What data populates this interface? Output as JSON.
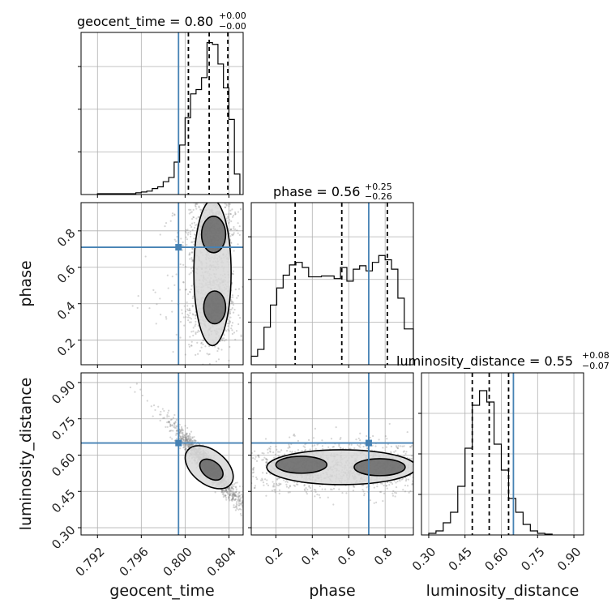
{
  "colors": {
    "truth": "#4682b4",
    "hist": "#000000",
    "quantile": "#000000",
    "grid": "#b0b0b0",
    "points": "#888888",
    "density": "#000000"
  },
  "chart_data": {
    "type": "corner",
    "grid": true,
    "parameters": [
      {
        "name": "geocent_time",
        "axis_label": "geocent_time",
        "title": "geocent_time = 0.80",
        "title_plus": "+0.00",
        "title_minus": "−0.00",
        "range": [
          0.7905,
          0.8053
        ],
        "ticks": [
          0.792,
          0.796,
          0.8,
          0.804
        ],
        "tick_labels": [
          "0.792",
          "0.796",
          "0.800",
          "0.804"
        ],
        "truth": 0.7994,
        "quantiles": [
          0.8003,
          0.8022,
          0.8039
        ],
        "hist_edges": [
          0.792,
          0.7925,
          0.793,
          0.7935,
          0.794,
          0.7945,
          0.795,
          0.7955,
          0.796,
          0.7965,
          0.797,
          0.7975,
          0.798,
          0.7985,
          0.799,
          0.7995,
          0.8,
          0.8005,
          0.801,
          0.8015,
          0.802,
          0.8025,
          0.803,
          0.8035,
          0.804,
          0.8045,
          0.805
        ],
        "hist_counts": [
          1,
          1,
          1,
          1,
          1,
          1,
          1,
          2,
          3,
          4,
          7,
          9,
          15,
          20,
          38,
          58,
          90,
          118,
          123,
          137,
          178,
          176,
          153,
          125,
          88,
          24
        ],
        "hist_max": 190
      },
      {
        "name": "phase",
        "axis_label": "phase",
        "title": "phase = 0.56",
        "title_plus": "+0.25",
        "title_minus": "−0.26",
        "range": [
          0.065,
          0.955
        ],
        "ticks": [
          0.2,
          0.4,
          0.6,
          0.8
        ],
        "tick_labels": [
          "0.2",
          "0.4",
          "0.6",
          "0.8"
        ],
        "truth": 0.71,
        "quantiles": [
          0.306,
          0.562,
          0.812
        ],
        "hist_edges": [
          0.065,
          0.1,
          0.135,
          0.17,
          0.205,
          0.24,
          0.275,
          0.31,
          0.345,
          0.38,
          0.415,
          0.45,
          0.485,
          0.52,
          0.555,
          0.59,
          0.625,
          0.66,
          0.695,
          0.73,
          0.765,
          0.8,
          0.835,
          0.87,
          0.905,
          0.94,
          0.955
        ],
        "hist_counts": [
          10,
          18,
          44,
          70,
          90,
          105,
          117,
          120,
          114,
          103,
          103,
          104,
          104,
          101,
          114,
          98,
          112,
          116,
          110,
          120,
          128,
          123,
          112,
          78,
          42,
          42
        ],
        "hist_max": 190
      },
      {
        "name": "luminosity_distance",
        "axis_label": "luminosity_distance",
        "title": "luminosity_distance = 0.55",
        "title_plus": "+0.08",
        "title_minus": "−0.07",
        "range": [
          0.27,
          0.94
        ],
        "ticks": [
          0.3,
          0.45,
          0.6,
          0.75,
          0.9
        ],
        "tick_labels": [
          "0.30",
          "0.45",
          "0.60",
          "0.75",
          "0.90"
        ],
        "truth": 0.65,
        "quantiles": [
          0.48,
          0.55,
          0.63
        ],
        "hist_edges": [
          0.3,
          0.33,
          0.36,
          0.39,
          0.42,
          0.45,
          0.48,
          0.51,
          0.54,
          0.57,
          0.6,
          0.63,
          0.66,
          0.69,
          0.72,
          0.75,
          0.78,
          0.81
        ],
        "hist_counts": [
          2,
          5,
          15,
          28,
          60,
          107,
          160,
          178,
          164,
          112,
          80,
          45,
          28,
          13,
          5,
          2,
          1
        ],
        "hist_max": 200
      }
    ],
    "pairs": [
      {
        "x": "geocent_time",
        "y": "phase",
        "truth": [
          0.7994,
          0.71
        ]
      },
      {
        "x": "geocent_time",
        "y": "luminosity_distance",
        "truth": [
          0.7994,
          0.65
        ]
      },
      {
        "x": "phase",
        "y": "luminosity_distance",
        "truth": [
          0.71,
          0.65
        ]
      }
    ]
  }
}
